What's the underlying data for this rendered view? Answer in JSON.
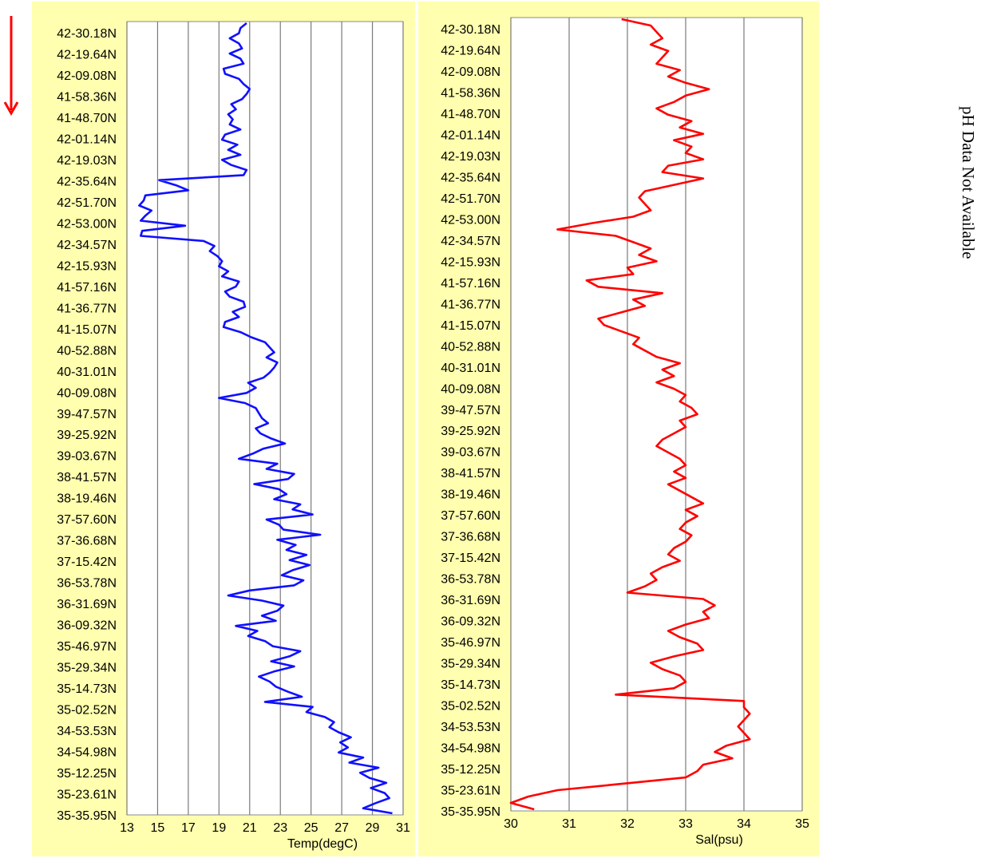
{
  "direction_arrow": {
    "icon": "down-arrow-icon",
    "color": "#ff0000"
  },
  "side_note": "pH Data Not Available",
  "chart_data": [
    {
      "type": "line",
      "orientation": "horizontal-x-value, vertical-y-category",
      "xlabel": "Temp(degC)",
      "xlim": [
        13,
        31
      ],
      "xticks": [
        13,
        15,
        17,
        19,
        21,
        23,
        25,
        27,
        29,
        31
      ],
      "grid": true,
      "color": "#1010ff",
      "y_tick_labels": [
        "42-30.18N",
        "42-19.64N",
        "42-09.08N",
        "41-58.36N",
        "41-48.70N",
        "42-01.14N",
        "42-19.03N",
        "42-35.64N",
        "42-51.70N",
        "42-53.00N",
        "42-34.57N",
        "42-15.93N",
        "41-57.16N",
        "41-36.77N",
        "41-15.07N",
        "40-52.88N",
        "40-31.01N",
        "40-09.08N",
        "39-47.57N",
        "39-25.92N",
        "39-03.67N",
        "38-41.57N",
        "38-19.46N",
        "37-57.60N",
        "37-36.68N",
        "37-15.42N",
        "36-53.78N",
        "36-31.69N",
        "36-09.32N",
        "35-46.97N",
        "35-29.34N",
        "35-14.73N",
        "35-02.52N",
        "34-53.53N",
        "34-54.98N",
        "35-12.25N",
        "35-23.61N",
        "35-35.95N"
      ],
      "series": [
        {
          "values": [
            20.8,
            20.4,
            20.3,
            19.7,
            20.3,
            20.5,
            19.7,
            20.4,
            20.6,
            19.3,
            19.4,
            20.3,
            20.6,
            21.0,
            20.8,
            20.5,
            19.8,
            20.1,
            19.6,
            19.9,
            19.7,
            20.4,
            19.4,
            19.2,
            20.2,
            19.6,
            20.4,
            19.2,
            19.8,
            20.8,
            20.6,
            15.1,
            16.2,
            17.0,
            14.2,
            14.1,
            13.8,
            14.6,
            14.2,
            13.9,
            16.8,
            14.0,
            13.9,
            18.0,
            18.7,
            18.4,
            18.9,
            19.2,
            19.0,
            19.6,
            19.2,
            20.3,
            20.1,
            19.4,
            19.7,
            20.6,
            20.7,
            19.9,
            20.3,
            19.4,
            19.3,
            20.4,
            21.1,
            22.0,
            22.3,
            22.6,
            22.1,
            22.8,
            22.6,
            22.3,
            21.9,
            20.9,
            21.4,
            20.8,
            19.0,
            20.7,
            21.4,
            21.6,
            21.8,
            22.2,
            21.4,
            21.7,
            22.4,
            23.3,
            21.9,
            21.2,
            20.3,
            22.8,
            22.1,
            23.9,
            23.5,
            21.3,
            22.9,
            23.4,
            22.6,
            24.3,
            23.8,
            25.1,
            22.1,
            22.9,
            23.2,
            25.6,
            22.8,
            24.0,
            23.4,
            24.7,
            23.6,
            24.9,
            23.8,
            23.1,
            24.5,
            23.9,
            21.0,
            19.6,
            21.8,
            23.2,
            22.8,
            21.8,
            22.7,
            20.1,
            21.5,
            20.9,
            22.0,
            22.5,
            24.3,
            23.6,
            22.4,
            23.9,
            22.6,
            21.6,
            22.3,
            22.7,
            23.5,
            24.4,
            22.0,
            25.1,
            24.7,
            25.9,
            26.5,
            26.2,
            26.8,
            27.6,
            26.9,
            27.4,
            26.8,
            28.4,
            27.5,
            29.4,
            28.2,
            28.8,
            29.9,
            28.9,
            29.8,
            30.1,
            29.2,
            28.4,
            30.3
          ]
        }
      ]
    },
    {
      "type": "line",
      "orientation": "horizontal-x-value, vertical-y-category",
      "xlabel": "Sal(psu)",
      "xlim": [
        30,
        35
      ],
      "xticks": [
        30,
        31,
        32,
        33,
        34,
        35
      ],
      "grid": true,
      "color": "#ff0000",
      "y_tick_labels": [
        "42-30.18N",
        "42-19.64N",
        "42-09.08N",
        "41-58.36N",
        "41-48.70N",
        "42-01.14N",
        "42-19.03N",
        "42-35.64N",
        "42-51.70N",
        "42-53.00N",
        "42-34.57N",
        "42-15.93N",
        "41-57.16N",
        "41-36.77N",
        "41-15.07N",
        "40-52.88N",
        "40-31.01N",
        "40-09.08N",
        "39-47.57N",
        "39-25.92N",
        "39-03.67N",
        "38-41.57N",
        "38-19.46N",
        "37-57.60N",
        "37-36.68N",
        "37-15.42N",
        "36-53.78N",
        "36-31.69N",
        "36-09.32N",
        "35-46.97N",
        "35-29.34N",
        "35-14.73N",
        "35-02.52N",
        "34-53.53N",
        "34-54.98N",
        "35-12.25N",
        "35-23.61N",
        "35-35.95N"
      ],
      "series": [
        {
          "values": [
            31.9,
            32.4,
            32.5,
            32.6,
            32.4,
            32.7,
            32.6,
            32.5,
            32.9,
            32.7,
            33.0,
            33.4,
            33.0,
            32.8,
            32.5,
            32.7,
            33.1,
            32.9,
            33.3,
            32.8,
            33.1,
            33.0,
            33.3,
            32.7,
            32.6,
            33.3,
            32.8,
            32.3,
            32.2,
            32.3,
            32.4,
            32.1,
            31.4,
            30.8,
            31.8,
            32.1,
            32.4,
            32.2,
            32.5,
            32.0,
            32.1,
            31.3,
            31.5,
            32.6,
            32.1,
            32.3,
            31.9,
            31.5,
            31.6,
            31.9,
            32.2,
            32.1,
            32.3,
            32.5,
            32.9,
            32.6,
            32.8,
            32.5,
            32.8,
            33.0,
            32.9,
            33.1,
            33.2,
            32.9,
            33.0,
            32.8,
            32.6,
            32.5,
            32.7,
            32.9,
            33.0,
            32.8,
            33.0,
            32.7,
            32.9,
            33.1,
            33.3,
            33.0,
            33.2,
            33.0,
            32.9,
            33.1,
            33.0,
            32.8,
            32.7,
            32.9,
            32.6,
            32.4,
            32.5,
            32.3,
            32.0,
            33.3,
            33.5,
            33.3,
            33.4,
            33.0,
            32.7,
            32.9,
            33.2,
            33.3,
            32.8,
            32.4,
            32.6,
            32.9,
            33.0,
            32.8,
            31.8,
            34.0,
            34.0,
            34.1,
            34.0,
            33.9,
            34.0,
            34.1,
            33.7,
            33.5,
            33.8,
            33.3,
            33.2,
            33.0,
            31.9,
            30.8,
            30.3,
            30.0,
            30.4
          ]
        }
      ]
    }
  ]
}
